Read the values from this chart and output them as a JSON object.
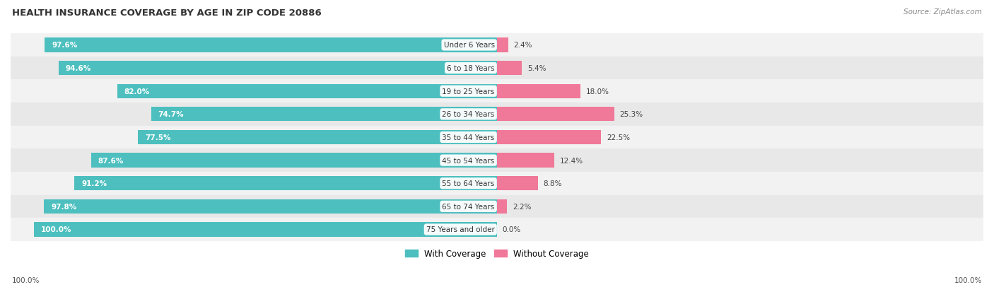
{
  "title": "HEALTH INSURANCE COVERAGE BY AGE IN ZIP CODE 20886",
  "source": "Source: ZipAtlas.com",
  "categories": [
    "Under 6 Years",
    "6 to 18 Years",
    "19 to 25 Years",
    "26 to 34 Years",
    "35 to 44 Years",
    "45 to 54 Years",
    "55 to 64 Years",
    "65 to 74 Years",
    "75 Years and older"
  ],
  "with_coverage": [
    97.6,
    94.6,
    82.0,
    74.7,
    77.5,
    87.6,
    91.2,
    97.8,
    100.0
  ],
  "without_coverage": [
    2.4,
    5.4,
    18.0,
    25.3,
    22.5,
    12.4,
    8.8,
    2.2,
    0.0
  ],
  "color_with": "#4DBFBF",
  "color_without": "#F07898",
  "color_bg_row_even": "#F2F2F2",
  "color_bg_row_odd": "#E8E8E8",
  "legend_with": "With Coverage",
  "legend_without": "Without Coverage",
  "bar_height": 0.62,
  "figsize": [
    14.06,
    4.14
  ],
  "dpi": 100,
  "xlim_left": -105,
  "xlim_right": 105,
  "scale": 100
}
